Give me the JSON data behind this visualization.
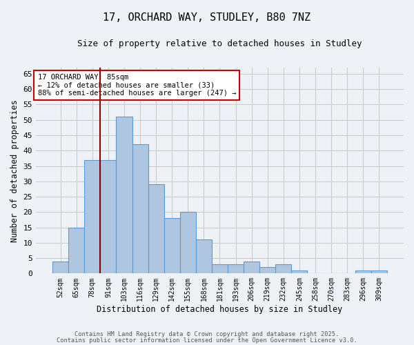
{
  "title1": "17, ORCHARD WAY, STUDLEY, B80 7NZ",
  "title2": "Size of property relative to detached houses in Studley",
  "xlabel": "Distribution of detached houses by size in Studley",
  "ylabel": "Number of detached properties",
  "categories": [
    "52sqm",
    "65sqm",
    "78sqm",
    "91sqm",
    "103sqm",
    "116sqm",
    "129sqm",
    "142sqm",
    "155sqm",
    "168sqm",
    "181sqm",
    "193sqm",
    "206sqm",
    "219sqm",
    "232sqm",
    "245sqm",
    "258sqm",
    "270sqm",
    "283sqm",
    "296sqm",
    "309sqm"
  ],
  "values": [
    4,
    15,
    37,
    37,
    51,
    42,
    29,
    18,
    20,
    11,
    3,
    3,
    4,
    2,
    3,
    1,
    0,
    0,
    0,
    1,
    1
  ],
  "bar_color": "#aec6df",
  "bar_edge_color": "#5b9bd5",
  "vline_x": 2.5,
  "vline_color": "#8b0000",
  "annotation_text": "17 ORCHARD WAY: 85sqm\n← 12% of detached houses are smaller (33)\n88% of semi-detached houses are larger (247) →",
  "annotation_box_color": "#ffffff",
  "annotation_box_edge": "#cc0000",
  "ylim": [
    0,
    67
  ],
  "yticks": [
    0,
    5,
    10,
    15,
    20,
    25,
    30,
    35,
    40,
    45,
    50,
    55,
    60,
    65
  ],
  "grid_color": "#cccccc",
  "bg_color": "#eef2f7",
  "footer1": "Contains HM Land Registry data © Crown copyright and database right 2025.",
  "footer2": "Contains public sector information licensed under the Open Government Licence v3.0."
}
